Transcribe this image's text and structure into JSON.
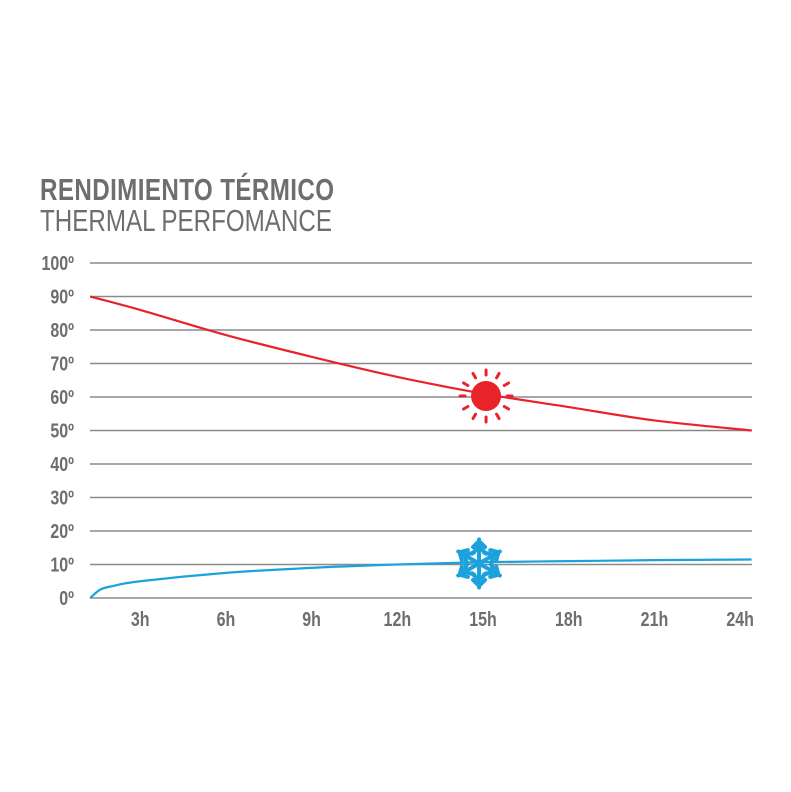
{
  "chart_data": {
    "type": "line",
    "title": "RENDIMIENTO TÉRMICO",
    "subtitle": "THERMAL PERFOMANCE",
    "xlabel": "",
    "ylabel": "",
    "xlim": [
      0,
      24
    ],
    "ylim": [
      0,
      100
    ],
    "x_ticks": [
      3,
      6,
      9,
      12,
      15,
      18,
      21,
      24
    ],
    "x_tick_labels": [
      "3h",
      "6h",
      "9h",
      "12h",
      "15h",
      "18h",
      "21h",
      "24h"
    ],
    "y_ticks": [
      0,
      10,
      20,
      30,
      40,
      50,
      60,
      70,
      80,
      90,
      100
    ],
    "y_tick_labels": [
      "0º",
      "10º",
      "20º",
      "30º",
      "40º",
      "50º",
      "60º",
      "70º",
      "80º",
      "90º",
      "100º"
    ],
    "grid": true,
    "series": [
      {
        "name": "hot",
        "icon": "sun-icon",
        "color": "#e8232a",
        "x": [
          1.25,
          3,
          6,
          9,
          12,
          15,
          18,
          21,
          24.4
        ],
        "values": [
          90,
          86,
          78.5,
          72,
          66,
          61,
          57,
          53,
          50
        ]
      },
      {
        "name": "cold",
        "icon": "snowflake-icon",
        "color": "#1ba1dc",
        "x": [
          1.25,
          1.6,
          2,
          3,
          6,
          9,
          12,
          15,
          18,
          21,
          24.4
        ],
        "values": [
          0,
          2.5,
          3.5,
          5,
          7.5,
          9,
          10,
          10.7,
          11,
          11.3,
          11.5
        ]
      }
    ],
    "annotations": [
      {
        "icon": "sun-icon",
        "x": 15,
        "y": 60
      },
      {
        "icon": "snowflake-icon",
        "x": 15,
        "y": 10
      }
    ]
  }
}
